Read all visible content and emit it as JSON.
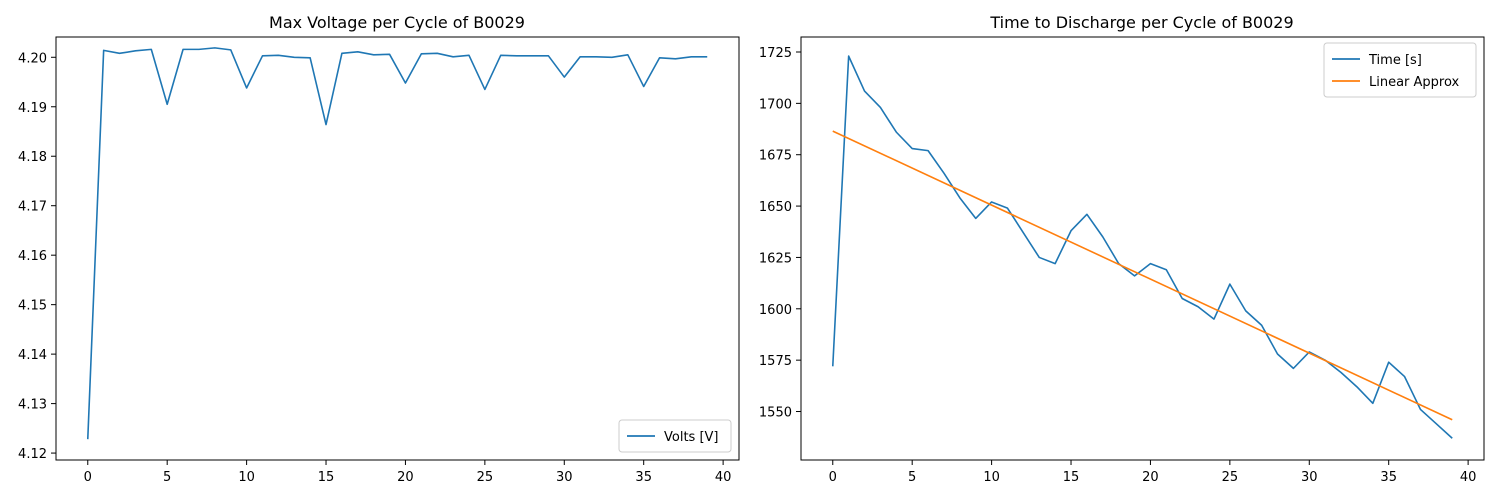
{
  "chart_data": [
    {
      "type": "line",
      "title": "Max Voltage per Cycle of B0029",
      "xlabel": "",
      "ylabel": "",
      "xlim": [
        -2,
        41
      ],
      "ylim": [
        4.1186,
        4.2041
      ],
      "xticks": [
        0,
        5,
        10,
        15,
        20,
        25,
        30,
        35,
        40
      ],
      "yticks": [
        4.12,
        4.13,
        4.14,
        4.15,
        4.16,
        4.17,
        4.18,
        4.19,
        4.2
      ],
      "ytick_labels": [
        "4.12",
        "4.13",
        "4.14",
        "4.15",
        "4.16",
        "4.17",
        "4.18",
        "4.19",
        "4.20"
      ],
      "legend_position": "lower-right",
      "series": [
        {
          "name": "Volts [V]",
          "color": "#1f77b4",
          "x": [
            0,
            1,
            2,
            3,
            4,
            5,
            6,
            7,
            8,
            9,
            10,
            11,
            12,
            13,
            14,
            15,
            16,
            17,
            18,
            19,
            20,
            21,
            22,
            23,
            24,
            25,
            26,
            27,
            28,
            29,
            30,
            31,
            32,
            33,
            34,
            35,
            36,
            37,
            38,
            39
          ],
          "y": [
            4.1228,
            4.2014,
            4.2008,
            4.2013,
            4.2016,
            4.1905,
            4.2016,
            4.2016,
            4.2019,
            4.2015,
            4.1938,
            4.2003,
            4.2004,
            4.2,
            4.1999,
            4.1864,
            4.2008,
            4.2011,
            4.2005,
            4.2006,
            4.1948,
            4.2007,
            4.2008,
            4.2001,
            4.2004,
            4.1935,
            4.2004,
            4.2003,
            4.2003,
            4.2003,
            4.196,
            4.2001,
            4.2001,
            4.2,
            4.2005,
            4.1941,
            4.1999,
            4.1997,
            4.2001,
            4.2001
          ]
        }
      ]
    },
    {
      "type": "line",
      "title": "Time to Discharge per Cycle of B0029",
      "xlabel": "",
      "ylabel": "",
      "xlim": [
        -2,
        41
      ],
      "ylim": [
        1526.4,
        1732.3
      ],
      "xticks": [
        0,
        5,
        10,
        15,
        20,
        25,
        30,
        35,
        40
      ],
      "yticks": [
        1550,
        1575,
        1600,
        1625,
        1650,
        1675,
        1700,
        1725
      ],
      "legend_position": "upper-right",
      "series": [
        {
          "name": "Time [s]",
          "color": "#1f77b4",
          "x": [
            0,
            1,
            2,
            3,
            4,
            5,
            6,
            7,
            8,
            9,
            10,
            11,
            12,
            13,
            14,
            15,
            16,
            17,
            18,
            19,
            20,
            21,
            22,
            23,
            24,
            25,
            26,
            27,
            28,
            29,
            30,
            31,
            32,
            33,
            34,
            35,
            36,
            37,
            38,
            39
          ],
          "y": [
            1572,
            1723,
            1706,
            1698,
            1686,
            1678,
            1677,
            1666,
            1654,
            1644,
            1652,
            1649,
            1637,
            1625,
            1622,
            1638,
            1646,
            1635,
            1622,
            1616,
            1622,
            1619,
            1605,
            1601,
            1595,
            1612,
            1599,
            1592,
            1578,
            1571,
            1579,
            1575,
            1569,
            1562,
            1554,
            1574,
            1567,
            1551,
            1544,
            1537
          ]
        },
        {
          "name": "Linear Approx",
          "color": "#ff7f0e",
          "x": [
            0,
            39
          ],
          "y": [
            1686.5,
            1546.0
          ]
        }
      ]
    }
  ]
}
